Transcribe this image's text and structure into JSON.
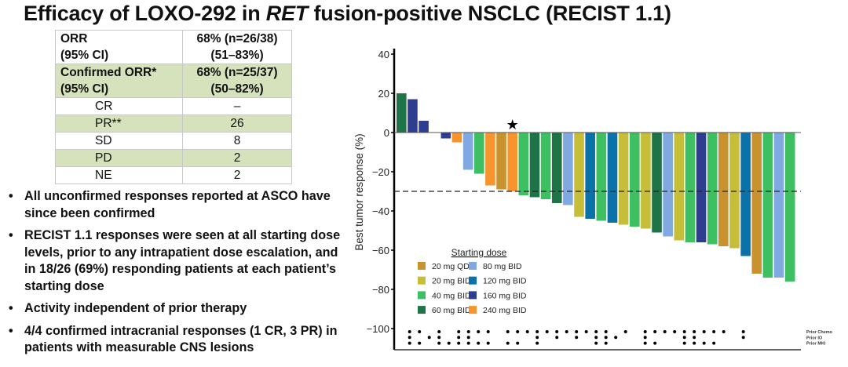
{
  "title": {
    "pre": "Efficacy of LOXO-292 in ",
    "italic": "RET",
    "post": " fusion-positive NSCLC (RECIST 1.1)"
  },
  "table": {
    "rows": [
      {
        "label": "ORR",
        "label2": "(95% CI)",
        "value": "68% (n=26/38)",
        "value2": "(51–83%)"
      },
      {
        "label": "Confirmed ORR*",
        "label2": "(95% CI)",
        "value": "68% (n=25/37)",
        "value2": "(50–82%)"
      },
      {
        "label": "CR",
        "value": "–"
      },
      {
        "label": "PR**",
        "value": "26"
      },
      {
        "label": "SD",
        "value": "8"
      },
      {
        "label": "PD",
        "value": "2"
      },
      {
        "label": "NE",
        "value": "2"
      }
    ]
  },
  "bullets": [
    "All unconfirmed responses reported at ASCO have since been confirmed",
    "RECIST 1.1 responses were seen at all starting dose levels, prior to any intrapatient dose escalation, and in 18/26 (69%) responding patients at each patient’s starting dose",
    "Activity independent of prior therapy",
    "4/4 confirmed intracranial responses (1 CR, 3 PR) in patients with measurable CNS lesions"
  ],
  "chart_data": {
    "type": "bar",
    "ylabel": "Best tumor response (%)",
    "ylim": [
      -100,
      40
    ],
    "yticks": [
      "40",
      "20",
      "0",
      "−20",
      "−40",
      "−60",
      "−80",
      "−100"
    ],
    "ytick_values": [
      40,
      20,
      0,
      -20,
      -40,
      -60,
      -80,
      -100
    ],
    "reference_line": -30,
    "star_marker_index": 10,
    "star_glyph": "★",
    "legend_title": "Starting dose",
    "doses": [
      {
        "key": "20QD",
        "label": "20 mg QD",
        "color": "#c8922f"
      },
      {
        "key": "20BID",
        "label": "20 mg BID",
        "color": "#c6bd38"
      },
      {
        "key": "40BID",
        "label": "40 mg BID",
        "color": "#3dbf62"
      },
      {
        "key": "60BID",
        "label": "60 mg BID",
        "color": "#1e7347"
      },
      {
        "key": "80BID",
        "label": "80 mg BID",
        "color": "#7fa9e0"
      },
      {
        "key": "120BID",
        "label": "120 mg BID",
        "color": "#0a72a8"
      },
      {
        "key": "160BID",
        "label": "160 mg BID",
        "color": "#2d3e91"
      },
      {
        "key": "240BID",
        "label": "240 mg BID",
        "color": "#f7942e"
      }
    ],
    "bars": [
      {
        "v": 20,
        "d": "60BID"
      },
      {
        "v": 17,
        "d": "160BID"
      },
      {
        "v": 6,
        "d": "160BID"
      },
      {
        "v": null,
        "d": null
      },
      {
        "v": -3,
        "d": "160BID"
      },
      {
        "v": -5,
        "d": "240BID"
      },
      {
        "v": -19,
        "d": "80BID"
      },
      {
        "v": -21,
        "d": "40BID"
      },
      {
        "v": -27,
        "d": "240BID"
      },
      {
        "v": -29,
        "d": "20QD"
      },
      {
        "v": -30,
        "d": "240BID"
      },
      {
        "v": -32,
        "d": "40BID"
      },
      {
        "v": -33,
        "d": "60BID"
      },
      {
        "v": -34,
        "d": "40BID"
      },
      {
        "v": -36,
        "d": "60BID"
      },
      {
        "v": -37,
        "d": "80BID"
      },
      {
        "v": -43,
        "d": "20BID"
      },
      {
        "v": -44,
        "d": "120BID"
      },
      {
        "v": -45,
        "d": "40BID"
      },
      {
        "v": -46,
        "d": "120BID"
      },
      {
        "v": -47,
        "d": "20BID"
      },
      {
        "v": -48,
        "d": "40BID"
      },
      {
        "v": -49,
        "d": "20BID"
      },
      {
        "v": -51,
        "d": "60BID"
      },
      {
        "v": -53,
        "d": "80BID"
      },
      {
        "v": -55,
        "d": "20BID"
      },
      {
        "v": -56,
        "d": "40BID"
      },
      {
        "v": -56,
        "d": "160BID"
      },
      {
        "v": -57,
        "d": "40BID"
      },
      {
        "v": -58,
        "d": "20QD"
      },
      {
        "v": -59,
        "d": "20BID"
      },
      {
        "v": -63,
        "d": "120BID"
      },
      {
        "v": -72,
        "d": "20QD"
      },
      {
        "v": -74,
        "d": "40BID"
      },
      {
        "v": -74,
        "d": "80BID"
      },
      {
        "v": -76,
        "d": "40BID"
      }
    ],
    "prior_therapy": {
      "labels": [
        "Prior Chemo",
        "Prior IO",
        "Prior MKI"
      ],
      "columns": 35,
      "rows": [
        [
          0,
          1,
          3,
          5,
          6,
          7,
          8,
          10,
          11,
          12,
          13,
          14,
          15,
          16,
          17,
          18,
          19,
          20,
          22,
          24,
          25,
          26,
          27,
          28,
          29,
          30,
          31,
          32,
          34
        ],
        [
          0,
          2,
          3,
          5,
          6,
          13,
          15,
          17,
          19,
          20,
          21,
          24,
          28,
          29,
          34
        ],
        [
          0,
          1,
          3,
          4,
          5,
          6,
          7,
          8,
          10,
          11,
          13,
          19,
          20,
          24,
          25,
          28,
          29,
          30,
          31
        ]
      ]
    }
  }
}
